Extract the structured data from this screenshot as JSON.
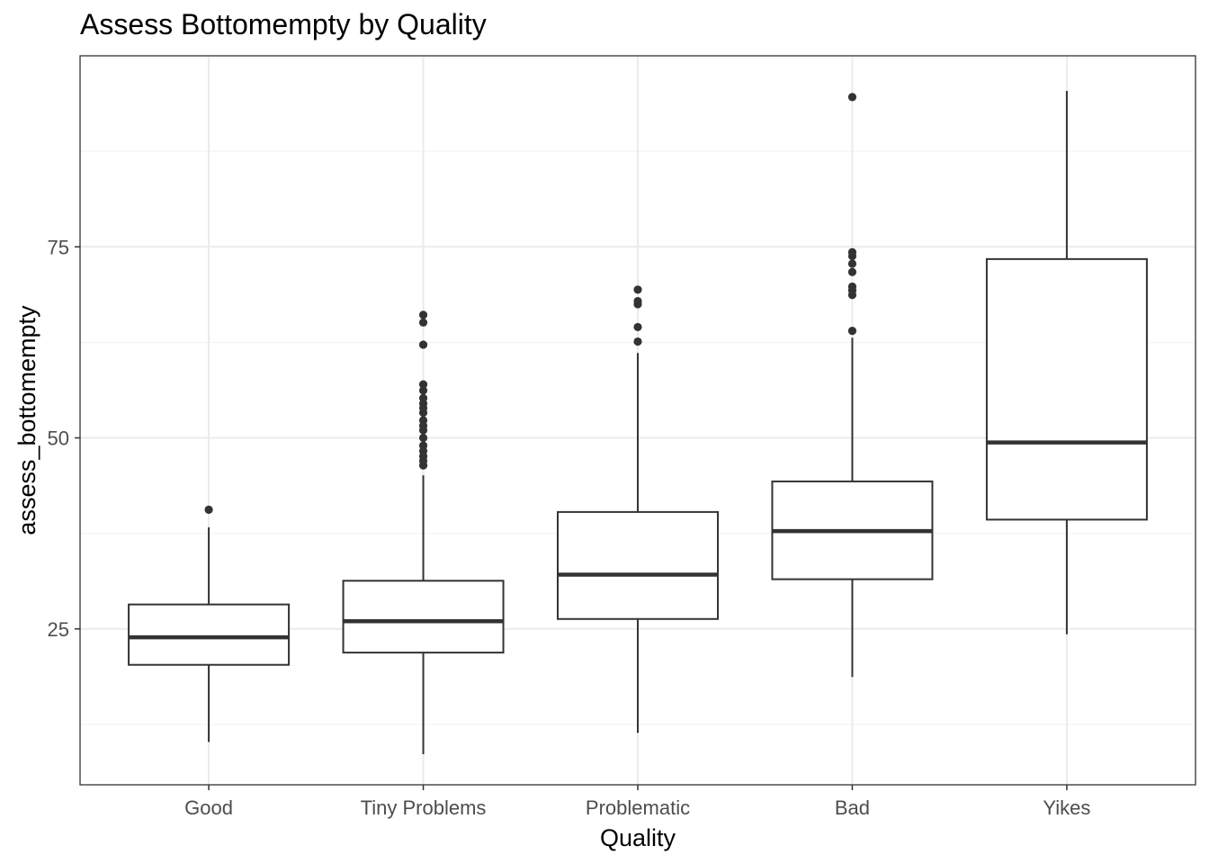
{
  "chart_data": {
    "type": "box",
    "title": "Assess Bottomempty by Quality",
    "xlabel": "Quality",
    "ylabel": "assess_bottomempty",
    "ylim": [
      4.6,
      100.0
    ],
    "yticks": [
      25,
      50,
      75
    ],
    "grid": true,
    "categories": [
      "Good",
      "Tiny Problems",
      "Problematic",
      "Bad",
      "Yikes"
    ],
    "boxes": [
      {
        "category": "Good",
        "whisker_low": 10.2,
        "q1": 20.3,
        "median": 23.9,
        "q3": 28.2,
        "whisker_high": 38.3,
        "outliers": [
          40.6
        ]
      },
      {
        "category": "Tiny Problems",
        "whisker_low": 8.6,
        "q1": 21.9,
        "median": 26.0,
        "q3": 31.3,
        "whisker_high": 45.1,
        "outliers": [
          46.4,
          47.0,
          47.6,
          48.3,
          49.0,
          50.0,
          51.0,
          51.6,
          52.3,
          53.3,
          53.9,
          54.5,
          55.2,
          56.2,
          57.0,
          62.2,
          65.1,
          66.1
        ]
      },
      {
        "category": "Problematic",
        "whisker_low": 11.4,
        "q1": 26.3,
        "median": 32.1,
        "q3": 40.3,
        "whisker_high": 61.1,
        "outliers": [
          62.6,
          64.5,
          67.5,
          67.9,
          69.4
        ]
      },
      {
        "category": "Bad",
        "whisker_low": 18.7,
        "q1": 31.5,
        "median": 37.8,
        "q3": 44.3,
        "whisker_high": 63.1,
        "outliers": [
          64.0,
          68.7,
          69.3,
          69.8,
          71.7,
          72.8,
          73.8,
          74.3,
          94.6
        ]
      },
      {
        "category": "Yikes",
        "whisker_low": 24.3,
        "q1": 39.3,
        "median": 49.4,
        "q3": 73.4,
        "whisker_high": 95.4,
        "outliers": []
      }
    ],
    "colors": {
      "box_line": "#333333",
      "grid_major": "#ebebeb",
      "grid_minor": "#f2f2f2",
      "panel_border": "#333333",
      "tick_text": "#4d4d4d"
    }
  }
}
